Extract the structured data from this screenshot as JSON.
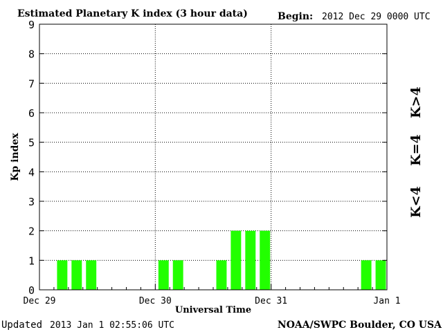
{
  "colors": {
    "background": "#ffffff",
    "bar": "#22ff00",
    "k_less_4": "#22ff00",
    "k_eq_4": "#ffd200",
    "k_gt_4": "#ff2a00",
    "axis": "#000000"
  },
  "header": {
    "title": "Estimated Planetary K index (3 hour data)",
    "begin_label": "Begin:",
    "begin_value": "2012 Dec 29 0000 UTC"
  },
  "footer": {
    "updated_label": "Updated",
    "updated_value": "2013 Jan  1 02:55:06 UTC",
    "source": "NOAA/SWPC Boulder, CO USA"
  },
  "legend": {
    "k_less_4": "K<4",
    "k_eq_4": "K=4",
    "k_gt_4": "K>4"
  },
  "chart_data": {
    "type": "bar",
    "title": "Estimated Planetary K index (3 hour data)",
    "xlabel": "Universal Time",
    "ylabel": "Kp index",
    "ylim": [
      0,
      9
    ],
    "yticks": [
      "0",
      "1",
      "2",
      "3",
      "4",
      "5",
      "6",
      "7",
      "8",
      "9"
    ],
    "xticks": [
      "Dec 29",
      "Dec 30",
      "Dec 31",
      "Jan 1"
    ],
    "interval_hours": 3,
    "grid": true,
    "series": [
      {
        "values": [
          0,
          1,
          1,
          1,
          0,
          0,
          0,
          0,
          1,
          1,
          0,
          0,
          1,
          2,
          2,
          2,
          0,
          0,
          0,
          0,
          0,
          0,
          1,
          1
        ]
      }
    ]
  }
}
